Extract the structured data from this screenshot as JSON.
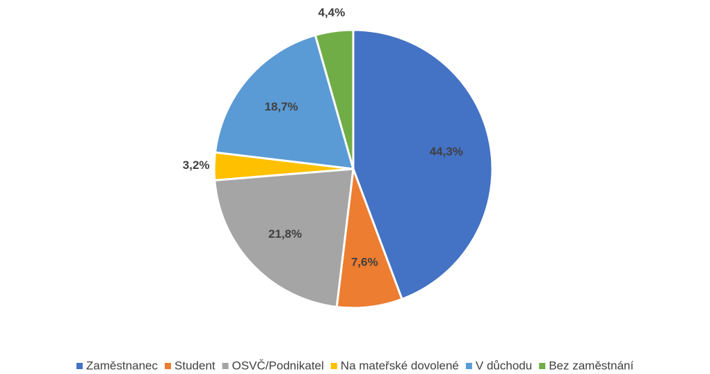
{
  "chart_data": {
    "type": "pie",
    "categories": [
      "Zaměstnanec",
      "Student",
      "OSVČ/Podnikatel",
      "Na mateřské dovolené",
      "V důchodu",
      "Bez zaměstnání"
    ],
    "values": [
      44.3,
      7.6,
      21.8,
      3.2,
      18.7,
      4.4
    ],
    "value_labels": [
      "44,3%",
      "7,6%",
      "21,8%",
      "3,2%",
      "18,7%",
      "4,4%"
    ],
    "colors": [
      "#4472c4",
      "#ed7d31",
      "#a5a5a5",
      "#ffc000",
      "#5b9bd5",
      "#70ad47"
    ],
    "legend": "bottom"
  }
}
